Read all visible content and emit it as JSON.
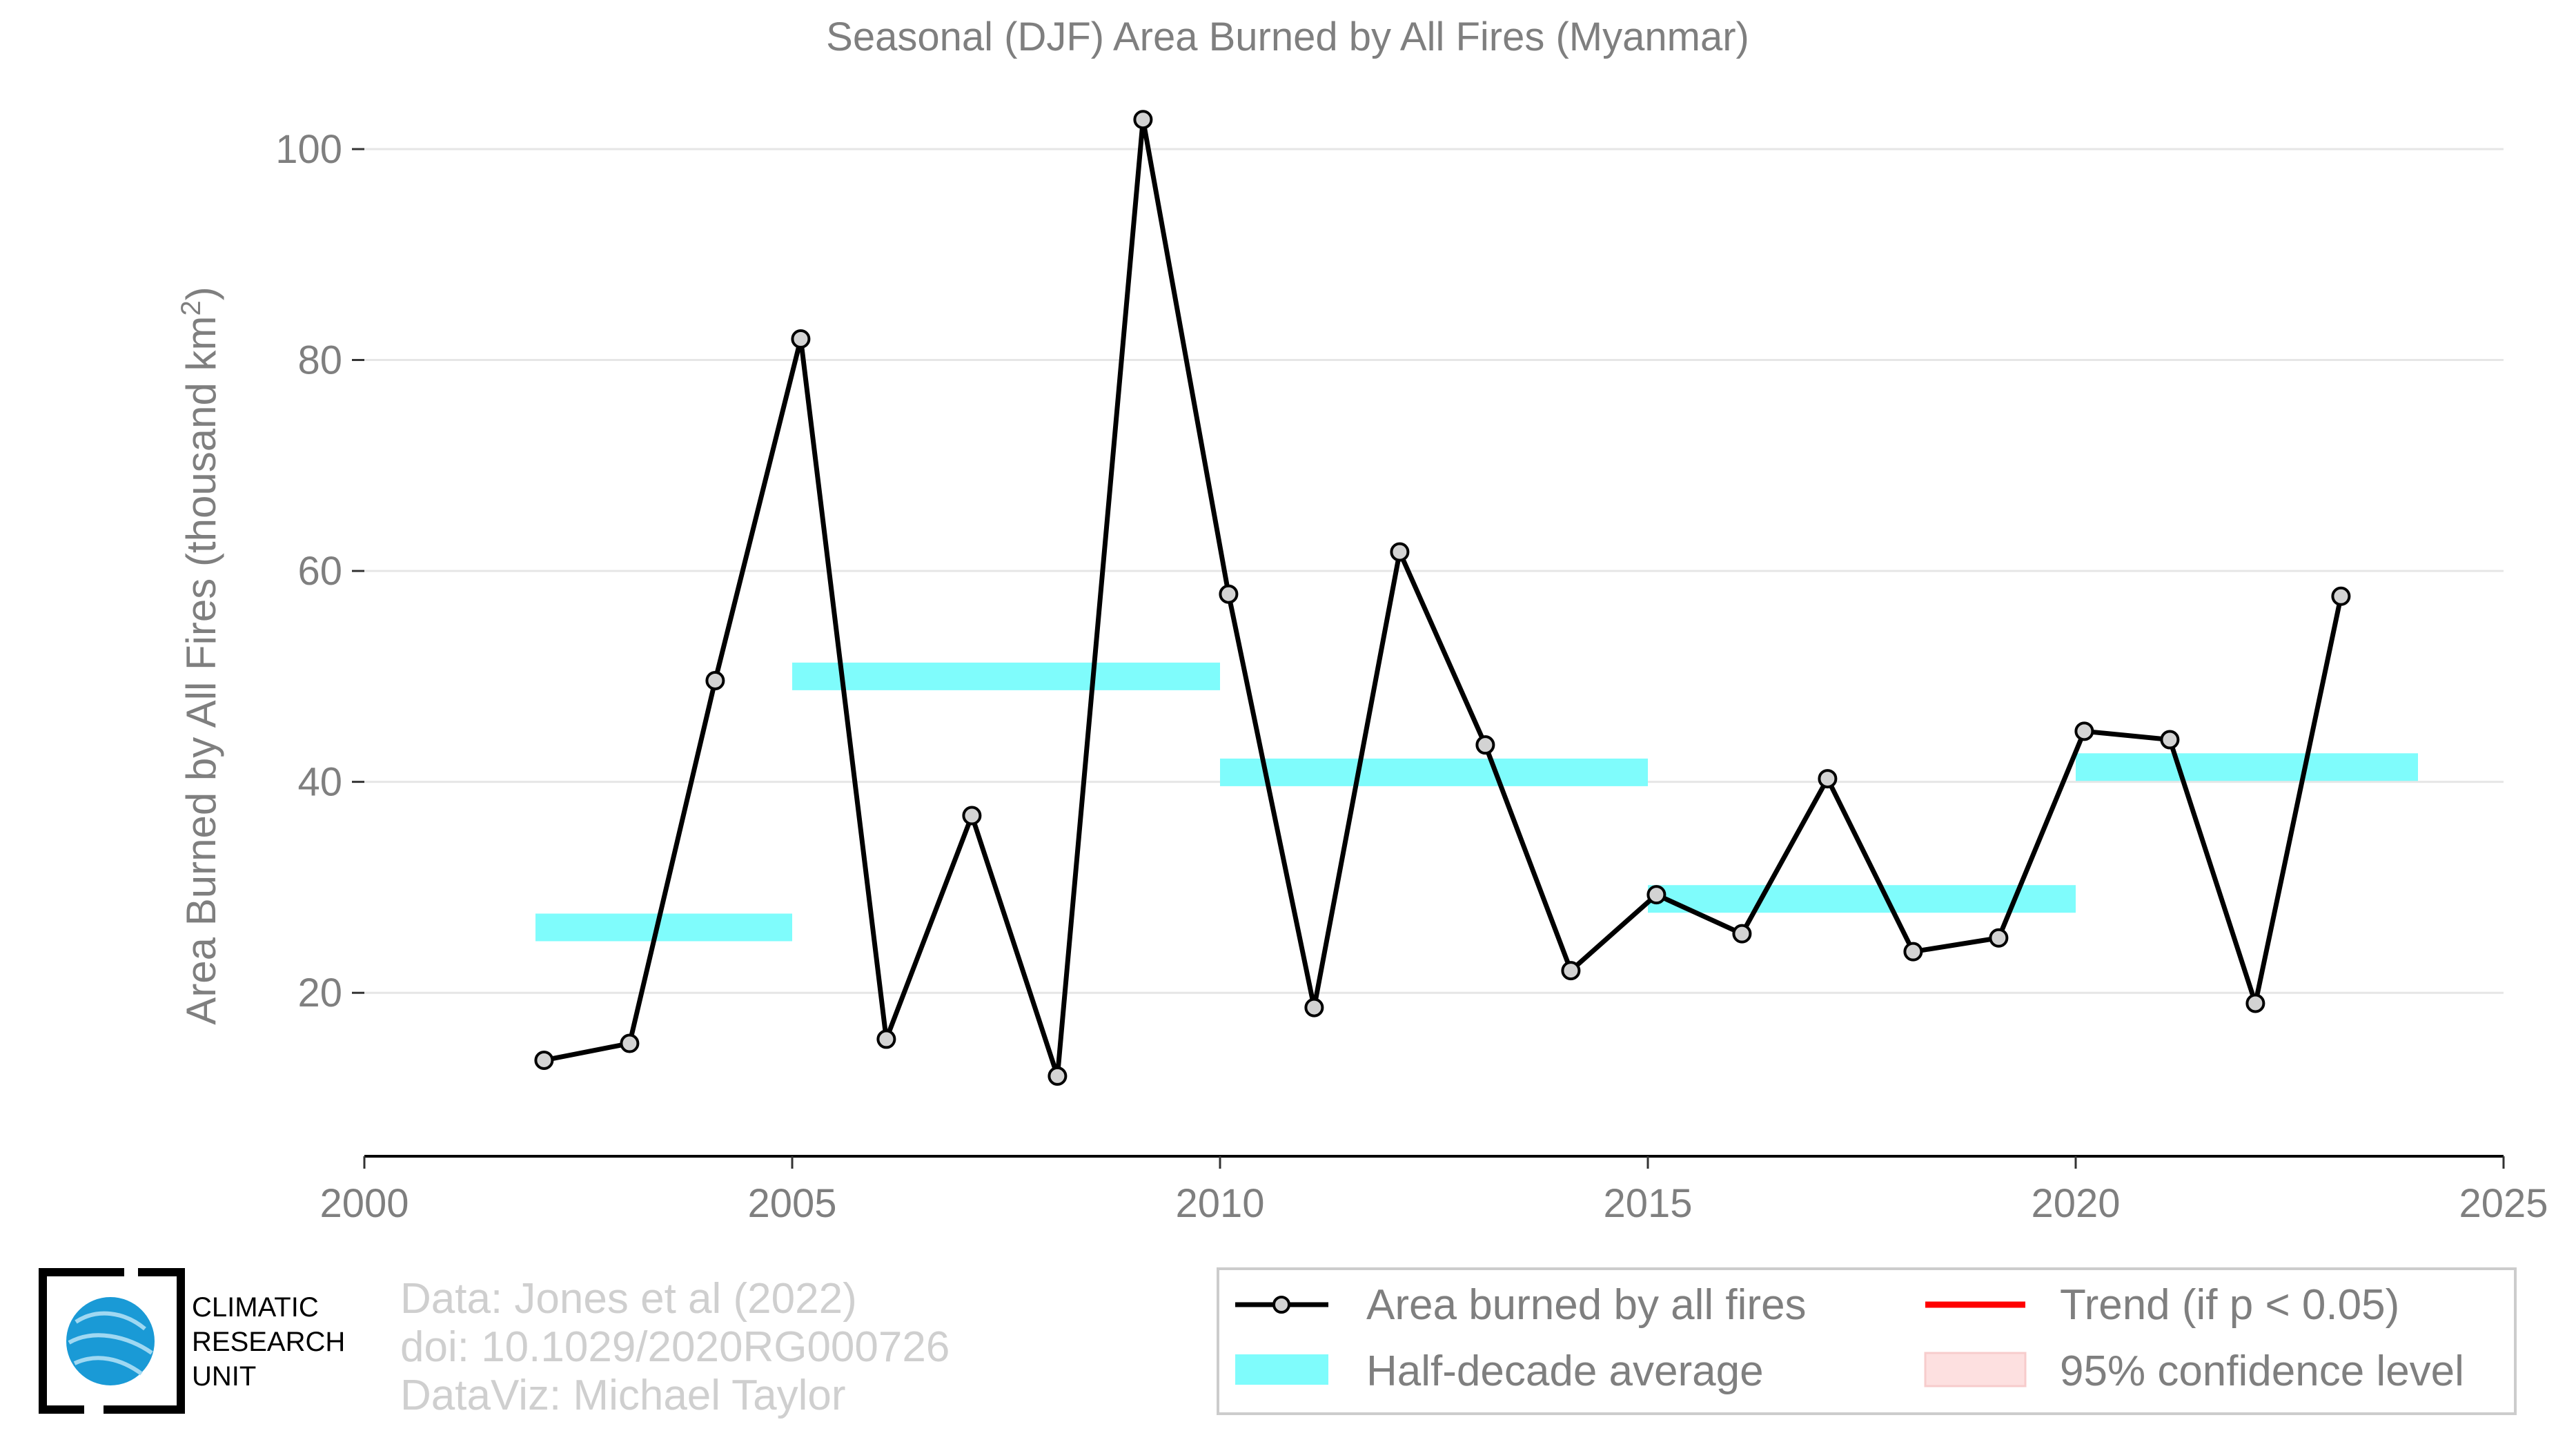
{
  "chart_data": {
    "type": "line",
    "title": "Seasonal (DJF) Area Burned by All Fires (Myanmar)",
    "xlabel": "",
    "ylabel": "Area Burned by All Fires (thousand km",
    "ylabel_superscript": "2",
    "ylabel_suffix": ")",
    "xlim": [
      2000,
      2025
    ],
    "ylim": [
      4.5,
      100
    ],
    "xticks": [
      "2000",
      "2005",
      "2010",
      "2015",
      "2020",
      "2025"
    ],
    "yticks": [
      "20",
      "40",
      "60",
      "80",
      "100"
    ],
    "grid": "horizontal",
    "legend_position": "bottom-right",
    "series": [
      {
        "name": "Area burned by all fires",
        "color": "#000000",
        "marker": "circle",
        "x": [
          2002.1,
          2003.1,
          2004.1,
          2005.1,
          2006.1,
          2007.1,
          2008.1,
          2009.1,
          2010.1,
          2011.1,
          2012.1,
          2013.1,
          2014.1,
          2015.1,
          2016.1,
          2017.1,
          2018.1,
          2019.1,
          2020.1,
          2021.1,
          2022.1,
          2023.1
        ],
        "y": [
          13.6,
          15.2,
          49.6,
          82.0,
          15.6,
          36.8,
          12.1,
          102.8,
          57.8,
          18.6,
          61.8,
          43.5,
          22.1,
          29.3,
          25.6,
          40.3,
          23.9,
          25.2,
          44.8,
          44.0,
          19.0,
          57.6
        ]
      }
    ],
    "half_decade_averages": {
      "name": "Half-decade average",
      "color": "#7ffcfc",
      "segments": [
        {
          "x0": 2002,
          "x1": 2005,
          "y": 26.2
        },
        {
          "x0": 2005,
          "x1": 2010,
          "y": 50.0
        },
        {
          "x0": 2010,
          "x1": 2015,
          "y": 40.9
        },
        {
          "x0": 2015,
          "x1": 2020,
          "y": 28.9
        },
        {
          "x0": 2020,
          "x1": 2024,
          "y": 41.4
        }
      ]
    },
    "legend": [
      {
        "label": "Area burned by all fires",
        "kind": "line-marker",
        "color": "#000000"
      },
      {
        "label": "Trend (if p < 0.05)",
        "kind": "line",
        "color": "#ff0000"
      },
      {
        "label": "Half-decade average",
        "kind": "band",
        "color": "#7ffcfc"
      },
      {
        "label": "95% confidence level",
        "kind": "patch",
        "color": "#fde0e0"
      }
    ]
  },
  "credits": {
    "line1": "Data: Jones et al (2022)",
    "line2": "doi: 10.1029/2020RG000726",
    "line3": "DataViz: Michael Taylor"
  },
  "logo": {
    "line1": "CLIMATIC",
    "line2": "RESEARCH",
    "line3": "UNIT"
  }
}
